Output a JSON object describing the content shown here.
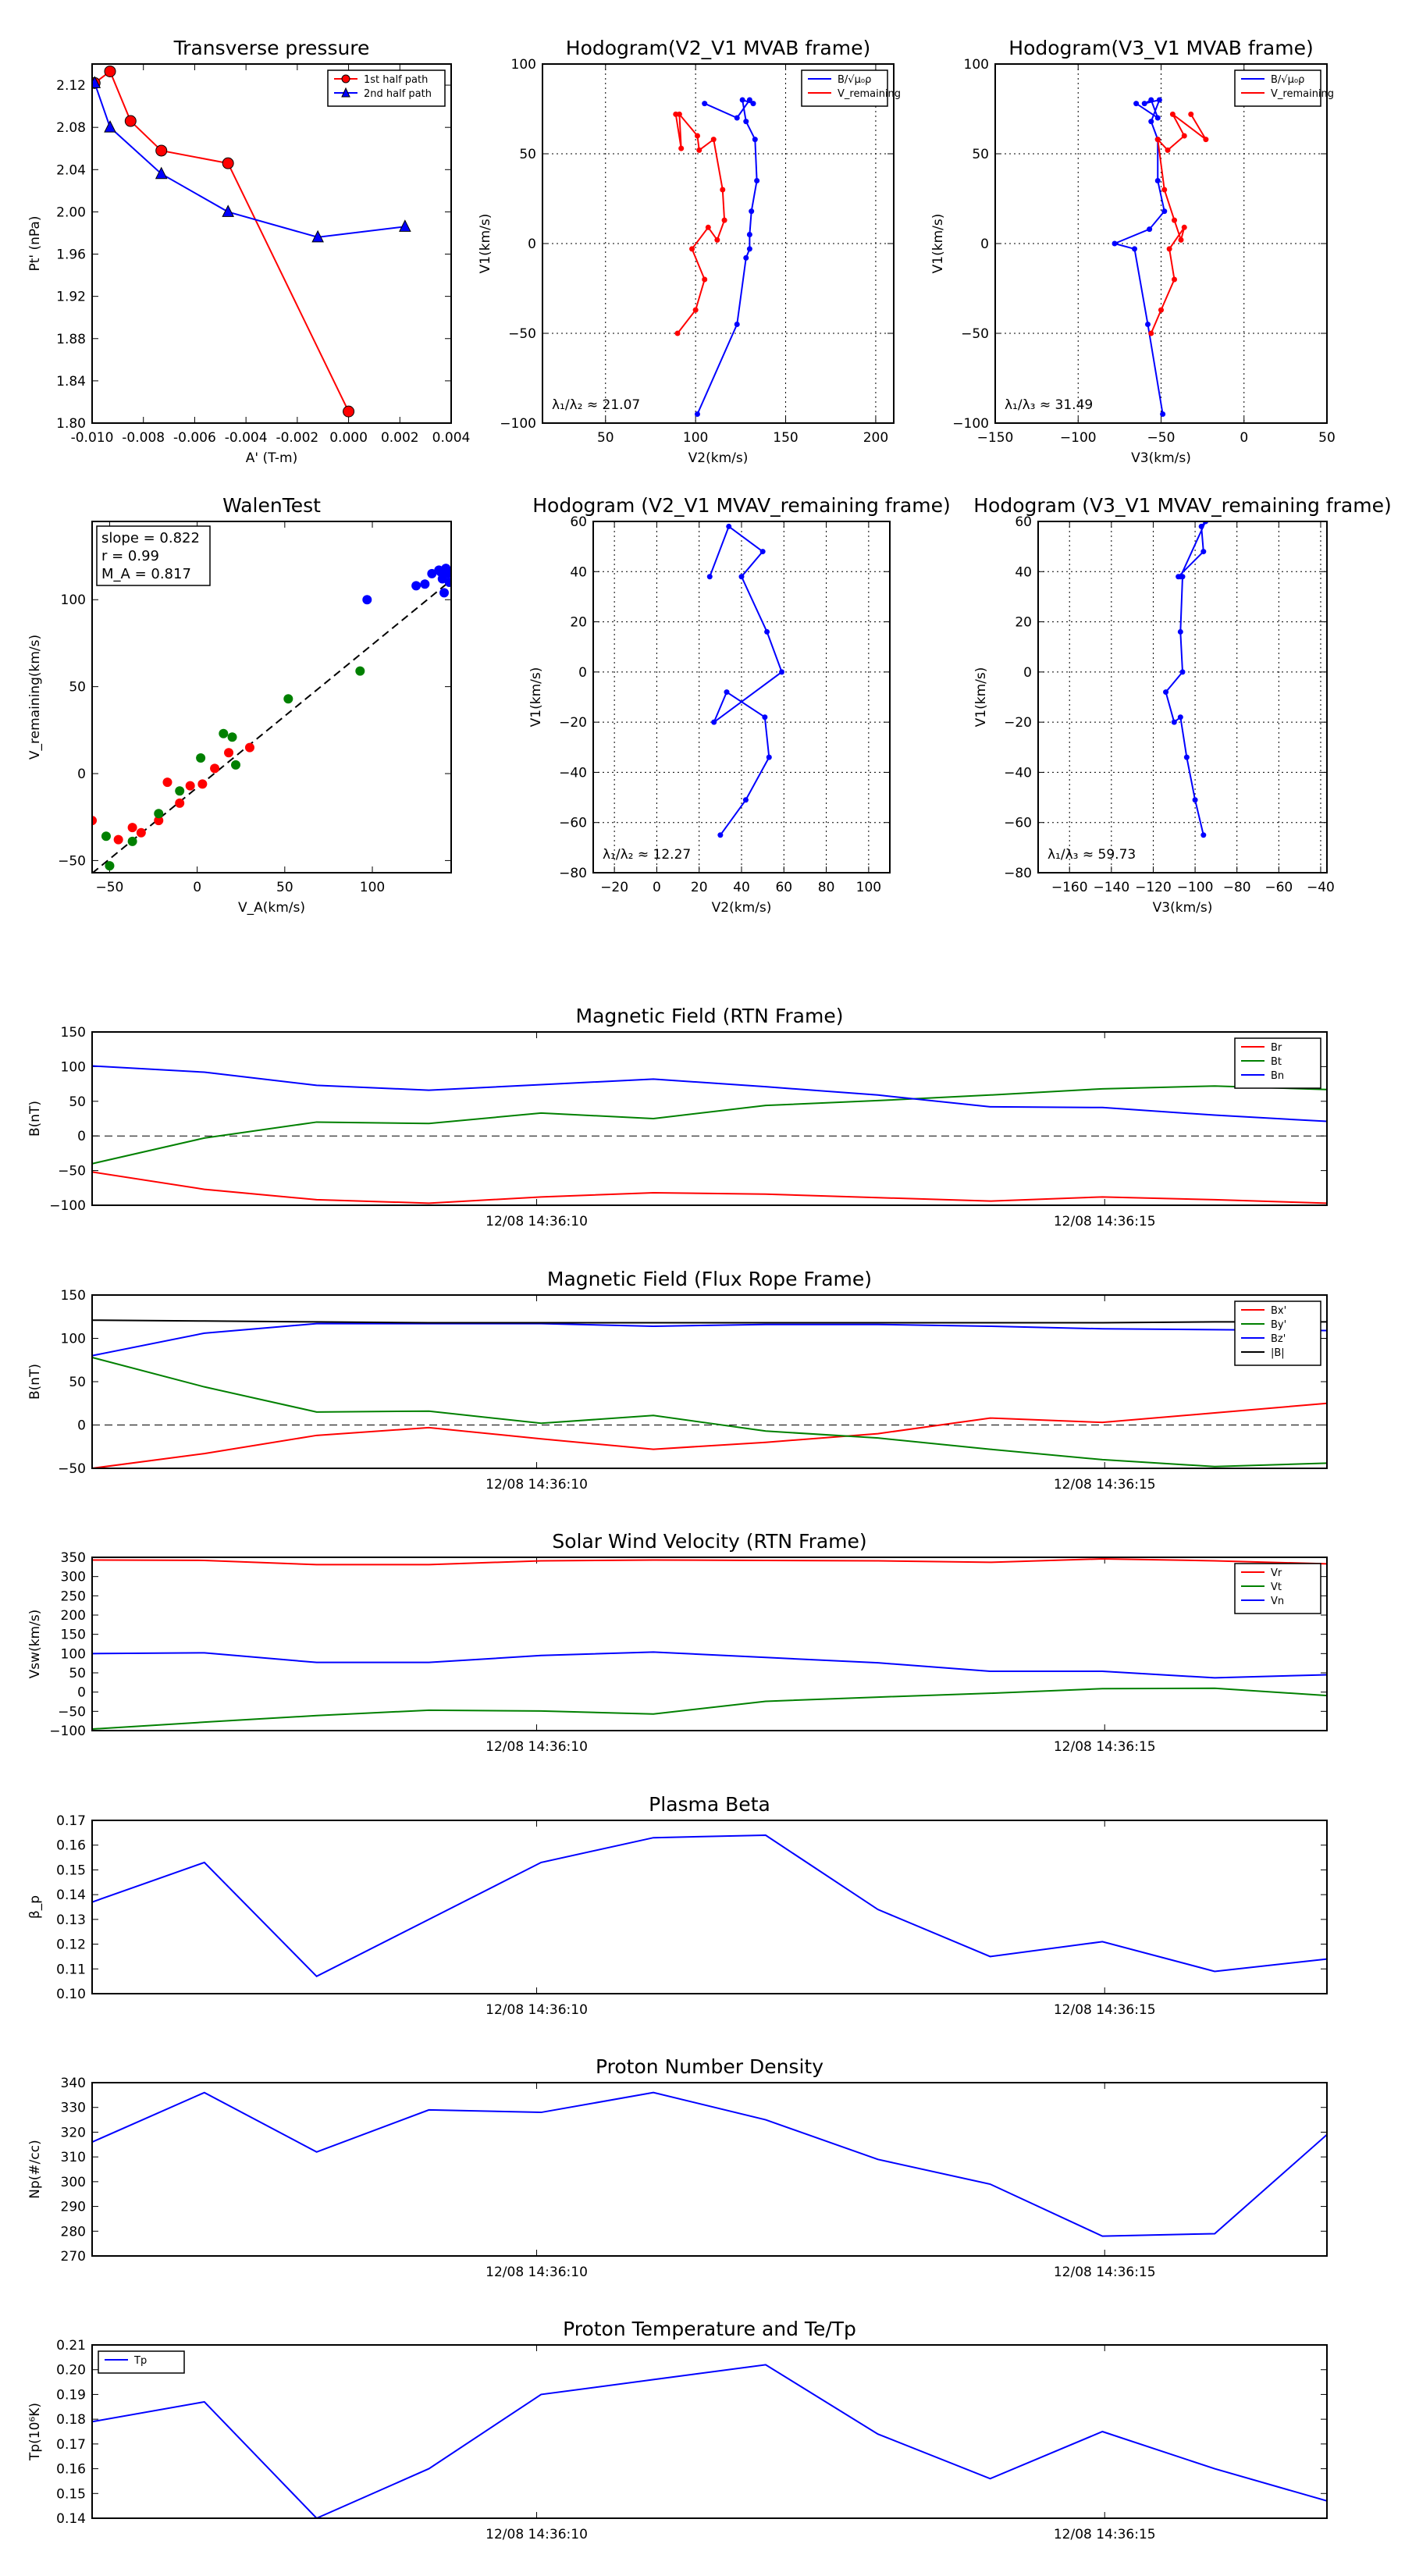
{
  "chart_data": [
    {
      "id": "tp",
      "type": "line",
      "title": "Transverse pressure",
      "xlabel": "A' (T-m)",
      "ylabel": "Pt' (nPa)",
      "xlim": [
        -0.01,
        0.004
      ],
      "ylim": [
        1.8,
        2.14
      ],
      "grid": false,
      "xticks": [
        -0.01,
        -0.008,
        -0.006,
        -0.004,
        -0.002,
        0.0,
        0.002,
        0.004
      ],
      "xticklabels": [
        "-0.010",
        "-0.008",
        "-0.006",
        "-0.004",
        "-0.002",
        "0.000",
        "0.002",
        "0.004"
      ],
      "yticks": [
        1.8,
        1.84,
        1.88,
        1.92,
        1.96,
        2.0,
        2.04,
        2.08,
        2.12
      ],
      "yticklabels": [
        "1.80",
        "1.84",
        "1.88",
        "1.92",
        "1.96",
        "2.00",
        "2.04",
        "2.08",
        "2.12"
      ],
      "legend": "top-right",
      "series": [
        {
          "name": "1st half path",
          "color": "#ff0000",
          "marker": "circle",
          "x": [
            0.0,
            -0.0047,
            -0.0073,
            -0.0085,
            -0.0093,
            -0.0099
          ],
          "y": [
            1.811,
            2.046,
            2.058,
            2.086,
            2.133,
            2.122
          ]
        },
        {
          "name": "2nd half path",
          "color": "#0000ff",
          "marker": "triangle",
          "x": [
            -0.0099,
            -0.0093,
            -0.0073,
            -0.0047,
            -0.0012,
            0.0022
          ],
          "y": [
            2.122,
            2.08,
            2.036,
            2.0,
            1.976,
            1.986
          ]
        }
      ]
    },
    {
      "id": "h1",
      "type": "line",
      "title": "Hodogram(V2_V1 MVAB frame)",
      "xlabel": "V2(km/s)",
      "ylabel": "V1(km/s)",
      "xlim": [
        15,
        210
      ],
      "ylim": [
        -100,
        100
      ],
      "grid": true,
      "xticks": [
        50,
        100,
        150,
        200
      ],
      "xticklabels": [
        "50",
        "100",
        "150",
        "200"
      ],
      "yticks": [
        -100,
        -50,
        0,
        50,
        100
      ],
      "yticklabels": [
        "−100",
        "−50",
        "0",
        "50",
        "100"
      ],
      "legend": "top-right",
      "annotation": "λ₁/λ₂ ≈ 21.07",
      "series": [
        {
          "name": "B/√μ₀ρ",
          "color": "#0000ff",
          "x": [
            101,
            123,
            128,
            130,
            130,
            131,
            134,
            133,
            128,
            126,
            132,
            130,
            123,
            105
          ],
          "y": [
            -95,
            -45,
            -8,
            -3,
            5,
            18,
            35,
            58,
            68,
            80,
            78,
            80,
            70,
            78
          ]
        },
        {
          "name": "V_remaining",
          "color": "#ff0000",
          "x": [
            90,
            100,
            105,
            98,
            107,
            112,
            116,
            115,
            110,
            102,
            101,
            91,
            92,
            89
          ],
          "y": [
            -50,
            -37,
            -20,
            -3,
            9,
            2,
            13,
            30,
            58,
            52,
            60,
            72,
            53,
            72
          ]
        }
      ]
    },
    {
      "id": "h2",
      "type": "line",
      "title": "Hodogram(V3_V1 MVAB frame)",
      "xlabel": "V3(km/s)",
      "ylabel": "V1(km/s)",
      "xlim": [
        -150,
        50
      ],
      "ylim": [
        -100,
        100
      ],
      "grid": true,
      "xticks": [
        -150,
        -100,
        -50,
        0,
        50
      ],
      "xticklabels": [
        "−150",
        "−100",
        "−50",
        "0",
        "50"
      ],
      "yticks": [
        -100,
        -50,
        0,
        50,
        100
      ],
      "yticklabels": [
        "−100",
        "−50",
        "0",
        "50",
        "100"
      ],
      "legend": "top-right",
      "annotation": "λ₁/λ₃ ≈ 31.49",
      "series": [
        {
          "name": "B/√μ₀ρ",
          "color": "#0000ff",
          "x": [
            -49,
            -58,
            -66,
            -78,
            -57,
            -48,
            -52,
            -52,
            -56,
            -51,
            -60,
            -56,
            -52,
            -65
          ],
          "y": [
            -95,
            -45,
            -3,
            0,
            8,
            18,
            35,
            58,
            68,
            80,
            78,
            80,
            70,
            78
          ]
        },
        {
          "name": "V_remaining",
          "color": "#ff0000",
          "x": [
            -56,
            -50,
            -42,
            -45,
            -36,
            -38,
            -42,
            -48,
            -52,
            -46,
            -36,
            -43,
            -23,
            -32
          ],
          "y": [
            -50,
            -37,
            -20,
            -3,
            9,
            2,
            13,
            30,
            58,
            52,
            60,
            72,
            58,
            72
          ]
        }
      ]
    },
    {
      "id": "walen",
      "type": "scatter",
      "title": "WalenTest",
      "xlabel": "V_A(km/s)",
      "ylabel": "V_remaining(km/s)",
      "xlim": [
        -60,
        145
      ],
      "ylim": [
        -57,
        145
      ],
      "grid": false,
      "xticks": [
        -50,
        0,
        50,
        100
      ],
      "xticklabels": [
        "−50",
        "0",
        "50",
        "100"
      ],
      "yticks": [
        -50,
        0,
        50,
        100
      ],
      "yticklabels": [
        "−50",
        "0",
        "50",
        "100"
      ],
      "stats": [
        "slope = 0.822",
        "r = 0.99",
        "M_A = 0.817"
      ],
      "fit": {
        "slope": 0.822,
        "intercept": -8
      },
      "series": [
        {
          "name": "red",
          "color": "#ff0000",
          "x": [
            -60,
            -45,
            -37,
            -32,
            -22,
            -17,
            -10,
            -4,
            3,
            10,
            18,
            30
          ],
          "y": [
            -27,
            -38,
            -31,
            -34,
            -27,
            -5,
            -17,
            -7,
            -6,
            3,
            12,
            15
          ]
        },
        {
          "name": "green",
          "color": "#008000",
          "x": [
            -50,
            -52,
            -37,
            -22,
            -10,
            2,
            15,
            20,
            22,
            52,
            93
          ],
          "y": [
            -53,
            -36,
            -39,
            -23,
            -10,
            9,
            23,
            21,
            5,
            43,
            59
          ]
        },
        {
          "name": "blue",
          "color": "#0000ff",
          "x": [
            97,
            125,
            130,
            134,
            138,
            140,
            142,
            143,
            141,
            139,
            144
          ],
          "y": [
            100,
            108,
            109,
            115,
            117,
            112,
            118,
            115,
            104,
            116,
            110
          ]
        }
      ]
    },
    {
      "id": "h3",
      "type": "line",
      "title": "Hodogram (V2_V1 MVAV_remaining frame)",
      "xlabel": "V2(km/s)",
      "ylabel": "V1(km/s)",
      "xlim": [
        -30,
        110
      ],
      "ylim": [
        -80,
        60
      ],
      "grid": true,
      "xticks": [
        -20,
        0,
        20,
        40,
        60,
        80,
        100
      ],
      "xticklabels": [
        "−20",
        "0",
        "20",
        "40",
        "60",
        "80",
        "100"
      ],
      "yticks": [
        -80,
        -60,
        -40,
        -20,
        0,
        20,
        40,
        60
      ],
      "yticklabels": [
        "−80",
        "−60",
        "−40",
        "−20",
        "0",
        "20",
        "40",
        "60"
      ],
      "annotation": "λ₁/λ₂ ≈ 12.27",
      "series": [
        {
          "name": "path",
          "color": "#0000ff",
          "x": [
            30,
            42,
            53,
            51,
            33,
            27,
            59,
            52,
            40,
            50,
            34,
            25
          ],
          "y": [
            -65,
            -51,
            -34,
            -18,
            -8,
            -20,
            0,
            16,
            38,
            48,
            58,
            38
          ]
        }
      ]
    },
    {
      "id": "h4",
      "type": "line",
      "title": "Hodogram (V3_V1 MVAV_remaining frame)",
      "xlabel": "V3(km/s)",
      "ylabel": "V1(km/s)",
      "xlim": [
        -175,
        -37
      ],
      "ylim": [
        -80,
        60
      ],
      "grid": true,
      "xticks": [
        -160,
        -140,
        -120,
        -100,
        -80,
        -60,
        -40
      ],
      "xticklabels": [
        "−160",
        "−140",
        "−120",
        "−100",
        "−80",
        "−60",
        "−40"
      ],
      "yticks": [
        -80,
        -60,
        -40,
        -20,
        0,
        20,
        40,
        60
      ],
      "yticklabels": [
        "−80",
        "−60",
        "−40",
        "−20",
        "0",
        "20",
        "40",
        "60"
      ],
      "annotation": "λ₁/λ₃ ≈ 59.73",
      "series": [
        {
          "name": "path",
          "color": "#0000ff",
          "x": [
            -96,
            -100,
            -104,
            -107,
            -110,
            -114,
            -106,
            -107,
            -106,
            -108,
            -96,
            -97,
            -95,
            -107
          ],
          "y": [
            -65,
            -51,
            -34,
            -18,
            -20,
            -8,
            0,
            16,
            38,
            38,
            48,
            58,
            60,
            38
          ]
        }
      ]
    },
    {
      "id": "bfield",
      "type": "line",
      "title": "Magnetic Field (RTN Frame)",
      "xlabel": "",
      "ylabel": "B(nT)",
      "ylim": [
        -100,
        150
      ],
      "zero_line": true,
      "grid": false,
      "yticks": [
        -100,
        -50,
        0,
        50,
        100,
        150
      ],
      "yticklabels": [
        "−100",
        "−50",
        "0",
        "50",
        "100",
        "150"
      ],
      "time_ticks": [
        "12/08 14:36:10",
        "12/08 14:36:15"
      ],
      "legend": "top-right",
      "series": [
        {
          "name": "Br",
          "color": "#ff0000",
          "values": [
            -52,
            -77,
            -92,
            -97,
            -88,
            -82,
            -84,
            -89,
            -94,
            -88,
            -92,
            -97
          ]
        },
        {
          "name": "Bt",
          "color": "#008000",
          "values": [
            -40,
            -3,
            20,
            18,
            33,
            25,
            44,
            51,
            59,
            68,
            72,
            67
          ]
        },
        {
          "name": "Bn",
          "color": "#0000ff",
          "values": [
            101,
            92,
            73,
            66,
            74,
            82,
            71,
            59,
            42,
            41,
            30,
            21
          ]
        }
      ]
    },
    {
      "id": "bfr",
      "type": "line",
      "title": "Magnetic Field (Flux Rope Frame)",
      "xlabel": "",
      "ylabel": "B(nT)",
      "ylim": [
        -50,
        150
      ],
      "zero_line": true,
      "grid": false,
      "yticks": [
        -50,
        0,
        50,
        100,
        150
      ],
      "yticklabels": [
        "−50",
        "0",
        "50",
        "100",
        "150"
      ],
      "time_ticks": [
        "12/08 14:36:10",
        "12/08 14:36:15"
      ],
      "legend": "top-right",
      "series": [
        {
          "name": "Bx'",
          "color": "#ff0000",
          "values": [
            -50,
            -33,
            -12,
            -3,
            -16,
            -28,
            -20,
            -10,
            8,
            3,
            14,
            25
          ]
        },
        {
          "name": "By'",
          "color": "#008000",
          "values": [
            78,
            44,
            15,
            16,
            2,
            11,
            -7,
            -15,
            -28,
            -40,
            -48,
            -44
          ]
        },
        {
          "name": "Bz'",
          "color": "#0000ff",
          "values": [
            80,
            106,
            117,
            117,
            117,
            114,
            116,
            116,
            114,
            111,
            110,
            109
          ]
        },
        {
          "name": "|B|",
          "color": "#000000",
          "values": [
            121,
            120,
            119,
            118,
            118,
            118,
            118,
            118,
            118,
            118,
            119,
            119
          ]
        }
      ]
    },
    {
      "id": "vsw",
      "type": "line",
      "title": "Solar Wind Velocity (RTN Frame)",
      "xlabel": "",
      "ylabel": "Vsw(km/s)",
      "ylim": [
        -100,
        350
      ],
      "grid": false,
      "yticks": [
        -100,
        -50,
        0,
        50,
        100,
        150,
        200,
        250,
        300,
        350
      ],
      "yticklabels": [
        "−100",
        "−50",
        "0",
        "50",
        "100",
        "150",
        "200",
        "250",
        "300",
        "350"
      ],
      "time_ticks": [
        "12/08 14:36:10",
        "12/08 14:36:15"
      ],
      "legend": "top-right",
      "series": [
        {
          "name": "Vr",
          "color": "#ff0000",
          "values": [
            343,
            342,
            331,
            331,
            341,
            343,
            342,
            341,
            337,
            346,
            341,
            333
          ]
        },
        {
          "name": "Vt",
          "color": "#008000",
          "values": [
            -96,
            -78,
            -61,
            -47,
            -49,
            -57,
            -24,
            -13,
            -3,
            9,
            10,
            -9
          ]
        },
        {
          "name": "Vn",
          "color": "#0000ff",
          "values": [
            100,
            102,
            77,
            77,
            95,
            104,
            90,
            76,
            54,
            54,
            37,
            45
          ]
        }
      ]
    },
    {
      "id": "beta",
      "type": "line",
      "title": "Plasma Beta",
      "xlabel": "",
      "ylabel": "β_p",
      "ylim": [
        0.1,
        0.17
      ],
      "grid": false,
      "yticks": [
        0.1,
        0.11,
        0.12,
        0.13,
        0.14,
        0.15,
        0.16,
        0.17
      ],
      "yticklabels": [
        "0.10",
        "0.11",
        "0.12",
        "0.13",
        "0.14",
        "0.15",
        "0.16",
        "0.17"
      ],
      "time_ticks": [
        "12/08 14:36:10",
        "12/08 14:36:15"
      ],
      "series": [
        {
          "name": "beta",
          "color": "#0000ff",
          "values": [
            0.137,
            0.153,
            0.107,
            0.13,
            0.153,
            0.163,
            0.164,
            0.134,
            0.115,
            0.121,
            0.109,
            0.114
          ]
        }
      ]
    },
    {
      "id": "np",
      "type": "line",
      "title": "Proton Number Density",
      "xlabel": "",
      "ylabel": "Np(#/cc)",
      "ylim": [
        270,
        340
      ],
      "grid": false,
      "yticks": [
        270,
        280,
        290,
        300,
        310,
        320,
        330,
        340
      ],
      "yticklabels": [
        "270",
        "280",
        "290",
        "300",
        "310",
        "320",
        "330",
        "340"
      ],
      "time_ticks": [
        "12/08 14:36:10",
        "12/08 14:36:15"
      ],
      "series": [
        {
          "name": "Np",
          "color": "#0000ff",
          "values": [
            316,
            336,
            312,
            329,
            328,
            336,
            325,
            309,
            299,
            278,
            279,
            319
          ]
        }
      ]
    },
    {
      "id": "tp2",
      "type": "line",
      "title": "Proton Temperature and Te/Tp",
      "xlabel": "",
      "ylabel": "Tp(10⁶K)",
      "ylim": [
        0.14,
        0.21
      ],
      "grid": false,
      "yticks": [
        0.14,
        0.15,
        0.16,
        0.17,
        0.18,
        0.19,
        0.2,
        0.21
      ],
      "yticklabels": [
        "0.14",
        "0.15",
        "0.16",
        "0.17",
        "0.18",
        "0.19",
        "0.20",
        "0.21"
      ],
      "time_ticks": [
        "12/08 14:36:10",
        "12/08 14:36:15"
      ],
      "legend": "top-left",
      "series": [
        {
          "name": "Tp",
          "color": "#0000ff",
          "values": [
            0.179,
            0.187,
            0.14,
            0.16,
            0.19,
            0.196,
            0.202,
            0.174,
            0.156,
            0.175,
            0.16,
            0.147
          ]
        }
      ]
    }
  ]
}
